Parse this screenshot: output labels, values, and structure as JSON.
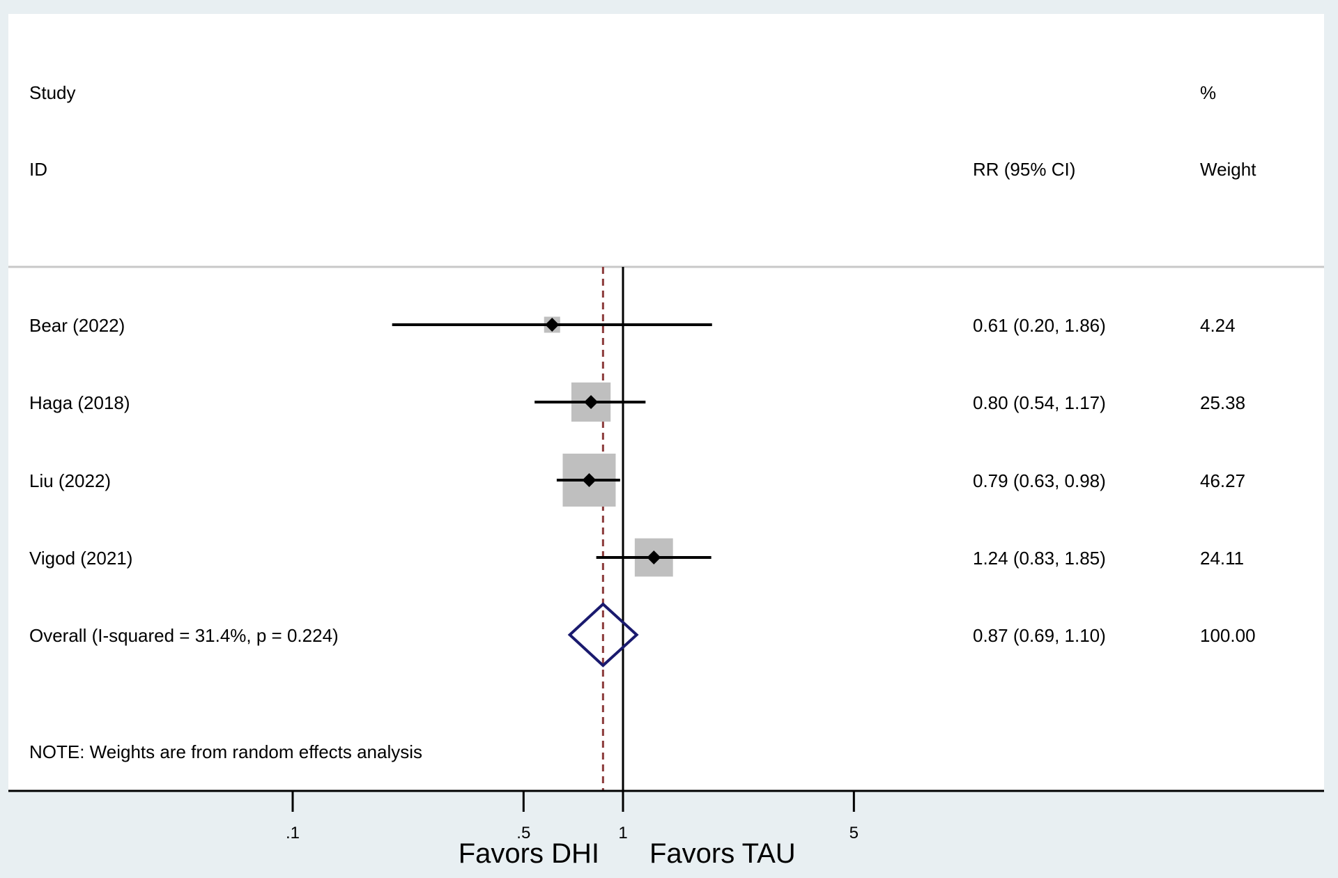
{
  "chart_data": {
    "type": "forest",
    "scale": "log",
    "xlim": [
      0.1,
      5
    ],
    "x_ticks": [
      {
        "value": 0.1,
        "label": ".1"
      },
      {
        "value": 0.5,
        "label": ".5"
      },
      {
        "value": 1,
        "label": "1"
      },
      {
        "value": 5,
        "label": "5"
      }
    ],
    "header": {
      "study_line1": "Study",
      "study_line2": "ID",
      "estimate_label": "RR (95% CI)",
      "weight_line1": "%",
      "weight_line2": "Weight"
    },
    "studies": [
      {
        "id": "Bear (2022)",
        "rr": 0.61,
        "lower": 0.2,
        "upper": 1.86,
        "ci_text": "0.61 (0.20, 1.86)",
        "weight": 4.24,
        "weight_text": "4.24"
      },
      {
        "id": "Haga (2018)",
        "rr": 0.8,
        "lower": 0.54,
        "upper": 1.17,
        "ci_text": "0.80 (0.54, 1.17)",
        "weight": 25.38,
        "weight_text": "25.38"
      },
      {
        "id": "Liu (2022)",
        "rr": 0.79,
        "lower": 0.63,
        "upper": 0.98,
        "ci_text": "0.79 (0.63, 0.98)",
        "weight": 46.27,
        "weight_text": "46.27"
      },
      {
        "id": "Vigod (2021)",
        "rr": 1.24,
        "lower": 0.83,
        "upper": 1.85,
        "ci_text": "1.24 (0.83, 1.85)",
        "weight": 24.11,
        "weight_text": "24.11"
      }
    ],
    "overall": {
      "label": "Overall  (I-squared = 31.4%, p = 0.224)",
      "rr": 0.87,
      "lower": 0.69,
      "upper": 1.1,
      "ci_text": "0.87 (0.69, 1.10)",
      "weight_text": "100.00"
    },
    "null_line": 1,
    "note": "NOTE: Weights are from random effects analysis",
    "favors_left": "Favors DHI",
    "favors_right": "Favors TAU",
    "colors": {
      "ci_line": "#000000",
      "weight_box": "#bfbfbf",
      "overall_diamond": "#1a1a6e",
      "overall_line": "#8b3a3a"
    }
  }
}
